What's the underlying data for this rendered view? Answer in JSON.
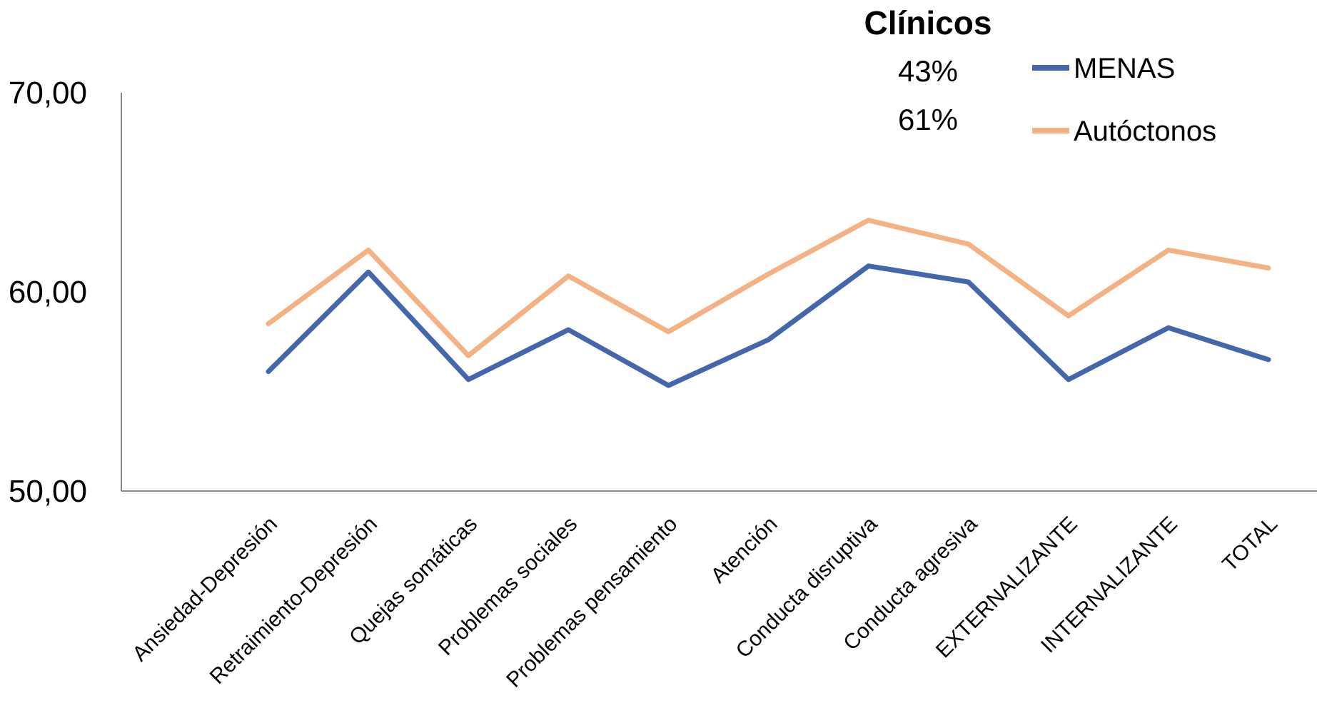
{
  "chart_data": {
    "type": "line",
    "title": "Clínicos",
    "annotations": [
      "43%",
      "61%"
    ],
    "categories": [
      "Ansiedad-Depresión",
      "Retraimiento-Depresión",
      "Quejas somáticas",
      "Problemas sociales",
      "Problemas pensamiento",
      "Atención",
      "Conducta disruptiva",
      "Conducta agresiva",
      "EXTERNALIZANTE",
      "INTERNALIZANTE",
      "TOTAL"
    ],
    "series": [
      {
        "name": "MENAS",
        "color": "#4466AA",
        "values": [
          56.0,
          61.0,
          55.6,
          58.1,
          55.3,
          57.6,
          61.3,
          60.5,
          55.6,
          58.2,
          56.6
        ]
      },
      {
        "name": "Autóctonos",
        "color": "#F4B183",
        "values": [
          58.4,
          62.1,
          56.8,
          60.8,
          58.0,
          60.9,
          63.6,
          62.4,
          58.8,
          62.1,
          61.2
        ]
      }
    ],
    "yticks": [
      "50,00",
      "60,00",
      "70,00"
    ],
    "ylim": [
      50,
      70
    ],
    "xlabel": "",
    "ylabel": "",
    "grid": false,
    "legend_position": "top-right"
  }
}
